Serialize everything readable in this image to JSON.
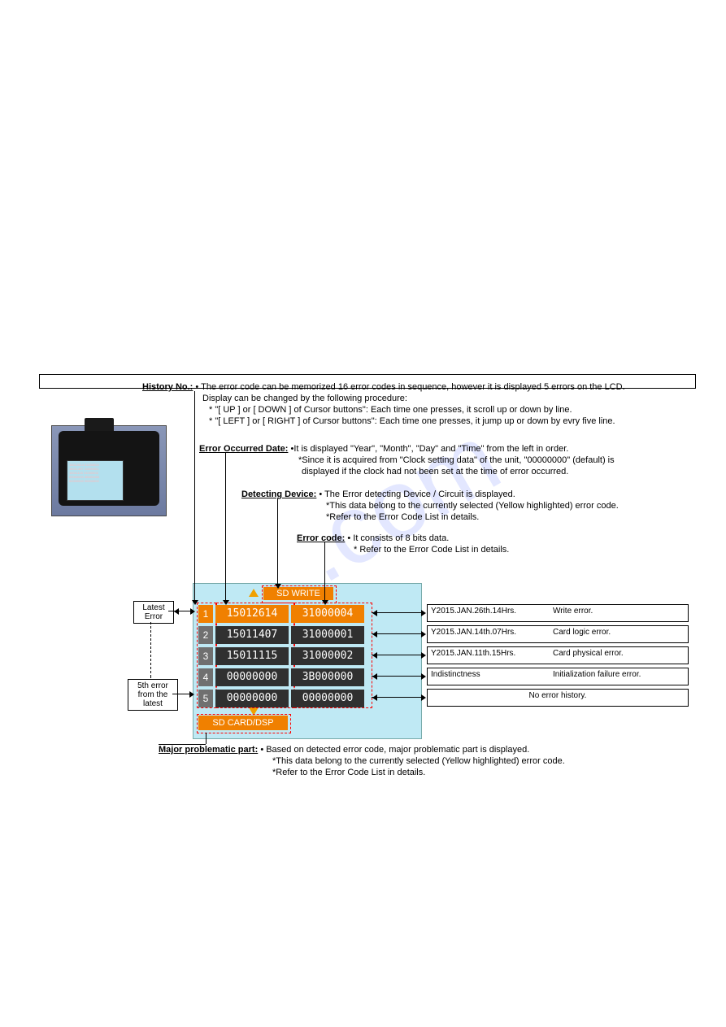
{
  "watermark": ".com",
  "labels": {
    "history_no": "History No.:",
    "error_date": "Error Occurred Date:",
    "detecting": "Detecting Device:",
    "error_code": "Error code:",
    "major_part": "Major problematic part:",
    "latest": "Latest Error",
    "fifth": "5th error from the latest",
    "sd_write": "SD WRITE",
    "sd_card": "SD CARD/DSP"
  },
  "history_text": {
    "l1": "• The error code can be memorized 16 error codes in sequence, however it is displayed 5 errors on the LCD.",
    "l2": "Display can be changed by the following procedure:",
    "l3": "* \"[ UP ] or [ DOWN ] of Cursor buttons\":  Each time one presses, it scroll up or down by line.",
    "l4": "* \"[ LEFT ] or [ RIGHT ] of Cursor buttons\":  Each time one presses, it jump up or down by evry five line."
  },
  "date_text": {
    "l1": "•It is displayed \"Year\", \"Month\", \"Day\" and \"Time\" from the left in order.",
    "l2": "*Since it is acquired from \"Clock setting data\" of the unit, \"00000000\" (default) is",
    "l3": "displayed if the clock had not been set at the time of error occurred."
  },
  "detect_text": {
    "l1": "• The Error detecting Device / Circuit is displayed.",
    "l2": "*This data belong to the currently selected (Yellow highlighted) error code.",
    "l3": "*Refer to the Error Code List in details."
  },
  "code_text": {
    "l1": "• It consists of 8 bits data.",
    "l2": "* Refer to the Error Code List in details."
  },
  "major_text": {
    "l1": "• Based on detected error code, major problematic part is displayed.",
    "l2": "*This data belong to the currently selected (Yellow highlighted) error code.",
    "l3": "*Refer to the Error Code List in details."
  },
  "rows": [
    {
      "idx": "1",
      "date": "15012614",
      "code": "31000004",
      "interp_date": "Y2015.JAN.26th.14Hrs.",
      "interp_desc": "Write error.",
      "hl": true
    },
    {
      "idx": "2",
      "date": "15011407",
      "code": "31000001",
      "interp_date": "Y2015.JAN.14th.07Hrs.",
      "interp_desc": "Card logic error.",
      "hl": false
    },
    {
      "idx": "3",
      "date": "15011115",
      "code": "31000002",
      "interp_date": "Y2015.JAN.11th.15Hrs.",
      "interp_desc": "Card physical error.",
      "hl": false
    },
    {
      "idx": "4",
      "date": "00000000",
      "code": "3B000000",
      "interp_date": "Indistinctness",
      "interp_desc": "Initialization failure error.",
      "hl": false
    },
    {
      "idx": "5",
      "date": "00000000",
      "code": "00000000",
      "interp_date": "",
      "interp_desc": "No error history.",
      "hl": false,
      "center": true
    }
  ],
  "colors": {
    "orange": "#f08000",
    "diag_bg": "#bfe9f4",
    "cell_dark": "#303030",
    "idx_gray": "#707070"
  }
}
